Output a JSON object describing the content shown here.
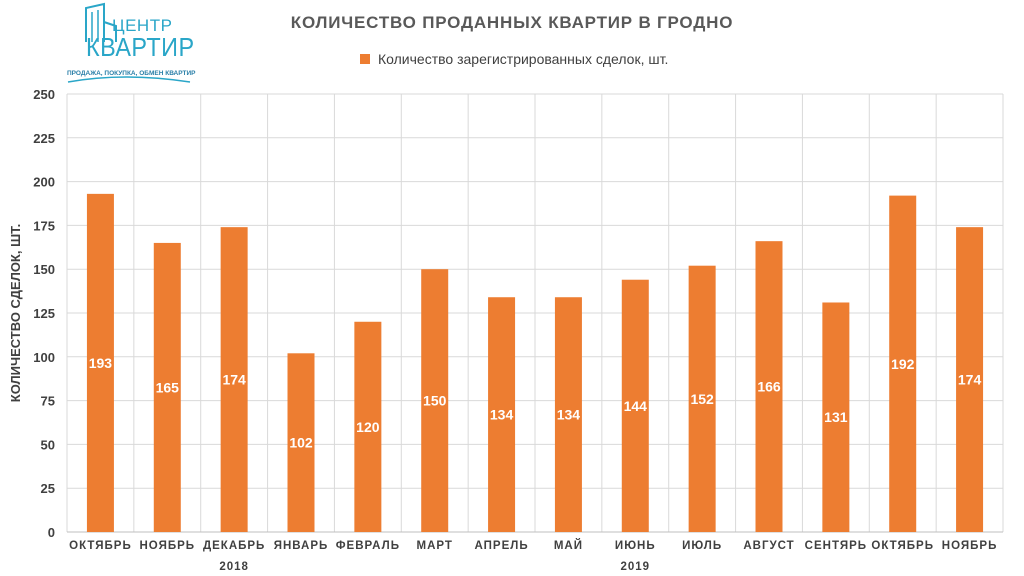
{
  "logo": {
    "top": "ЦЕНТР",
    "word": "КВАРТИР",
    "tagline": "ПРОДАЖА, ПОКУПКА, ОБМЕН КВАРТИР",
    "color": "#2aa6c8"
  },
  "chart_data": {
    "type": "bar",
    "title": "КОЛИЧЕСТВО ПРОДАННЫХ КВАРТИР В ГРОДНО",
    "ylabel": "КОЛИЧЕСТВО СДЕЛОК, ШТ.",
    "xlabel": "",
    "ylim": [
      0,
      250
    ],
    "yticks": [
      "0",
      "25",
      "50",
      "75",
      "100",
      "125",
      "150",
      "175",
      "200",
      "225",
      "250"
    ],
    "grid": true,
    "legend_position": "top",
    "categories": [
      "ОКТЯБРЬ",
      "НОЯБРЬ",
      "ДЕКАБРЬ",
      "ЯНВАРЬ",
      "ФЕВРАЛЬ",
      "МАРТ",
      "АПРЕЛЬ",
      "МАЙ",
      "ИЮНЬ",
      "ИЮЛЬ",
      "АВГУСТ",
      "СЕНТЯРЬ",
      "ОКТЯБРЬ",
      "НОЯБРЬ"
    ],
    "year_labels": [
      {
        "label": "2018",
        "category_index": 2
      },
      {
        "label": "2019",
        "category_index": 8
      }
    ],
    "series": [
      {
        "name": "Количество зарегистрированных сделок, шт.",
        "color": "#ed7d31",
        "values": [
          193,
          165,
          174,
          102,
          120,
          150,
          134,
          134,
          144,
          152,
          166,
          131,
          192,
          174
        ],
        "data_labels": [
          "193",
          "165",
          "174",
          "102",
          "120",
          "150",
          "134",
          "134",
          "144",
          "152",
          "166",
          "131",
          "192",
          "174"
        ]
      }
    ]
  }
}
